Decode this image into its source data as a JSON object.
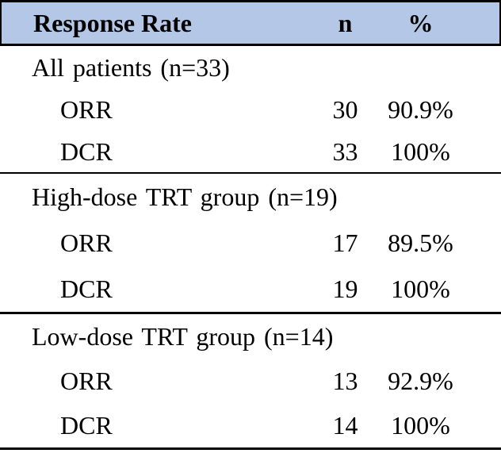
{
  "table": {
    "header": {
      "col1": "Response Rate",
      "col2": "n",
      "col3": "%"
    },
    "sections": [
      {
        "label": "All patients (n=33)",
        "rows": [
          {
            "label": "ORR",
            "n": "30",
            "pct": "90.9%"
          },
          {
            "label": "DCR",
            "n": "33",
            "pct": "100%"
          }
        ]
      },
      {
        "label": "High-dose TRT group (n=19)",
        "rows": [
          {
            "label": "ORR",
            "n": "17",
            "pct": "89.5%"
          },
          {
            "label": "DCR",
            "n": "19",
            "pct": "100%"
          }
        ]
      },
      {
        "label": "Low-dose TRT group (n=14)",
        "rows": [
          {
            "label": "ORR",
            "n": "13",
            "pct": "92.9%"
          },
          {
            "label": "DCR",
            "n": "14",
            "pct": "100%"
          }
        ]
      }
    ]
  },
  "colors": {
    "header_background": "#b5c7e6",
    "border": "#000000",
    "text": "#000000"
  }
}
